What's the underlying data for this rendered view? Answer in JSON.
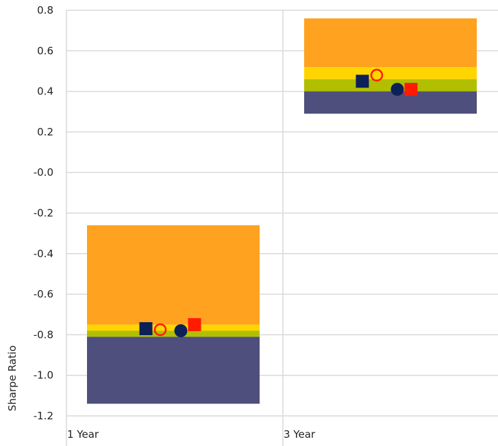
{
  "chart_data": {
    "type": "box",
    "title": "",
    "xlabel": "",
    "ylabel": "Sharpe Ratio",
    "ylim": [
      -1.2,
      0.8
    ],
    "y_ticks": [
      "0.8",
      "0.6",
      "0.4",
      "0.2",
      "-0.0",
      "-0.2",
      "-0.4",
      "-0.6",
      "-0.8",
      "-1.0",
      "-1.2"
    ],
    "y_tick_values": [
      0.8,
      0.6,
      0.4,
      0.2,
      0.0,
      -0.2,
      -0.4,
      -0.6,
      -0.8,
      -1.0,
      -1.2
    ],
    "grid": true,
    "categories": [
      "1 Year",
      "3 Year"
    ],
    "bands": [
      {
        "color": "#ffa21f",
        "ranges": [
          [
            -0.75,
            -0.26
          ],
          [
            0.52,
            0.76
          ]
        ]
      },
      {
        "color": "#ffd500",
        "ranges": [
          [
            -0.78,
            -0.75
          ],
          [
            0.46,
            0.52
          ]
        ]
      },
      {
        "color": "#b1bf00",
        "ranges": [
          [
            -0.81,
            -0.78
          ],
          [
            0.4,
            0.46
          ]
        ]
      },
      {
        "color": "#4e4f7c",
        "ranges": [
          [
            -1.14,
            -0.81
          ],
          [
            0.29,
            0.4
          ]
        ]
      }
    ],
    "markers": [
      {
        "shape": "filled-square",
        "color": "#0c2158",
        "values": [
          -0.77,
          0.45
        ]
      },
      {
        "shape": "hollow-circle",
        "color": "#ff1a00",
        "values": [
          -0.775,
          0.48
        ]
      },
      {
        "shape": "filled-circle",
        "color": "#0c2158",
        "values": [
          -0.78,
          0.41
        ]
      },
      {
        "shape": "filled-square",
        "color": "#ff1a00",
        "values": [
          -0.75,
          0.41
        ]
      }
    ],
    "colors": {
      "grid": "#d9d9d9",
      "text": "#222222"
    }
  }
}
